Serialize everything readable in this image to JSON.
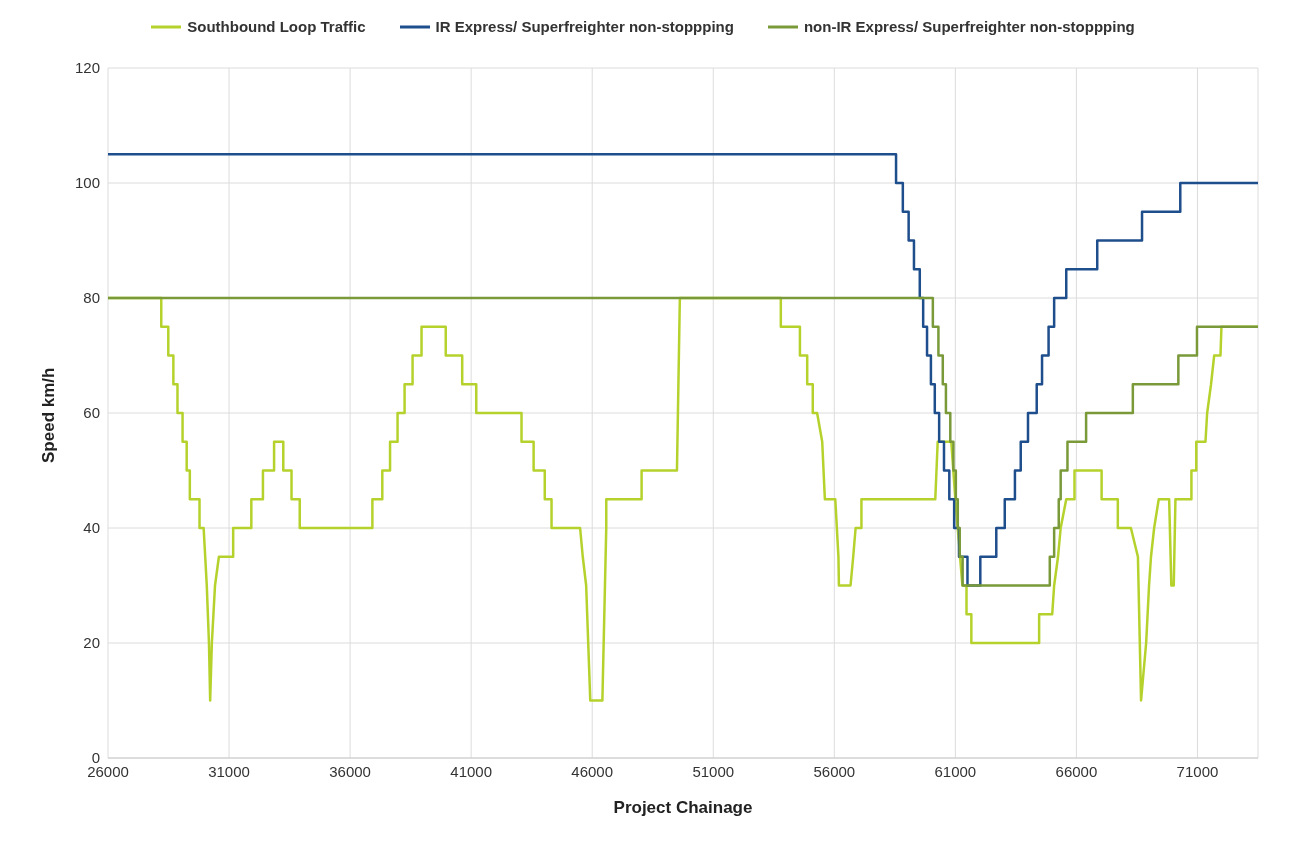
{
  "chart_data": {
    "type": "line",
    "xlabel": "Project Chainage",
    "ylabel": "Speed km/h",
    "xlim": [
      26000,
      73500
    ],
    "xticks": [
      26000,
      31000,
      36000,
      41000,
      46000,
      51000,
      56000,
      61000,
      66000,
      71000
    ],
    "ylim": [
      0,
      120
    ],
    "yticks": [
      0,
      20,
      40,
      60,
      80,
      100,
      120
    ],
    "grid": true,
    "legend": "top",
    "marker": "none",
    "line_style": "solid",
    "series": [
      {
        "name": "Southbound Loop Traffic",
        "color": "#b5d22c",
        "x": [
          26000,
          28200,
          28200,
          28490,
          28490,
          28700,
          28700,
          28870,
          28870,
          29080,
          29080,
          29250,
          29250,
          29380,
          29380,
          29780,
          29780,
          29950,
          30080,
          30170,
          30220,
          30290,
          30420,
          30580,
          31170,
          31170,
          31920,
          31920,
          32400,
          32400,
          32860,
          32860,
          33240,
          33240,
          33580,
          33580,
          33920,
          33920,
          36920,
          36920,
          37330,
          37330,
          37650,
          37650,
          37960,
          37960,
          38250,
          38250,
          38580,
          38580,
          38950,
          38950,
          39950,
          39950,
          40630,
          40630,
          41210,
          41210,
          43080,
          43080,
          43580,
          43580,
          44040,
          44040,
          44320,
          44320,
          45500,
          45610,
          45750,
          45920,
          46420,
          46580,
          46580,
          48040,
          48040,
          49500,
          49620,
          53790,
          53790,
          54580,
          54580,
          54880,
          54880,
          55110,
          55110,
          55290,
          55500,
          55610,
          56040,
          56170,
          56190,
          56670,
          56780,
          56880,
          57120,
          57120,
          60170,
          60270,
          60830,
          61000,
          61290,
          61460,
          61460,
          61660,
          61660,
          64460,
          64460,
          65000,
          65080,
          65240,
          65350,
          65580,
          65920,
          65920,
          67040,
          67040,
          67710,
          67710,
          68250,
          68540,
          68670,
          68880,
          69000,
          69080,
          69210,
          69400,
          69830,
          69920,
          70020,
          70090,
          70750,
          70750,
          70950,
          70950,
          71330,
          71400,
          71560,
          71690,
          71950,
          71990,
          73500
        ],
        "values": [
          80,
          80,
          75,
          75,
          70,
          70,
          65,
          65,
          60,
          60,
          55,
          55,
          50,
          50,
          45,
          45,
          40,
          40,
          30,
          20,
          10,
          20,
          30,
          35,
          35,
          40,
          40,
          45,
          45,
          50,
          50,
          55,
          55,
          50,
          50,
          45,
          45,
          40,
          40,
          45,
          45,
          50,
          50,
          55,
          55,
          60,
          60,
          65,
          65,
          70,
          70,
          75,
          75,
          70,
          70,
          65,
          65,
          60,
          60,
          55,
          55,
          50,
          50,
          45,
          45,
          40,
          40,
          35,
          30,
          10,
          10,
          40,
          45,
          45,
          50,
          50,
          80,
          80,
          75,
          75,
          70,
          70,
          65,
          65,
          60,
          60,
          55,
          45,
          45,
          35,
          30,
          30,
          35,
          40,
          40,
          45,
          45,
          55,
          55,
          45,
          30,
          30,
          25,
          25,
          20,
          20,
          25,
          25,
          30,
          35,
          40,
          45,
          45,
          50,
          50,
          45,
          45,
          40,
          40,
          35,
          10,
          20,
          30,
          35,
          40,
          45,
          45,
          30,
          30,
          45,
          45,
          50,
          50,
          55,
          55,
          60,
          65,
          70,
          70,
          75,
          75
        ]
      },
      {
        "name": "IR Express/ Superfreighter non-stoppping",
        "color": "#1f4e8c",
        "x": [
          26000,
          58550,
          58550,
          58830,
          58830,
          59070,
          59070,
          59290,
          59290,
          59530,
          59530,
          59670,
          59670,
          59830,
          59830,
          59990,
          59990,
          60150,
          60150,
          60330,
          60330,
          60530,
          60530,
          60750,
          60750,
          60950,
          60950,
          61150,
          61150,
          61500,
          61500,
          62030,
          62030,
          62690,
          62690,
          63040,
          63040,
          63460,
          63460,
          63700,
          63700,
          64000,
          64000,
          64360,
          64360,
          64580,
          64580,
          64850,
          64850,
          65080,
          65080,
          65580,
          65580,
          66860,
          66860,
          68710,
          68710,
          70290,
          70290,
          73500
        ],
        "values": [
          105,
          105,
          100,
          100,
          95,
          95,
          90,
          90,
          85,
          85,
          80,
          80,
          75,
          75,
          70,
          70,
          65,
          65,
          60,
          60,
          55,
          55,
          50,
          50,
          45,
          45,
          40,
          40,
          35,
          35,
          30,
          30,
          35,
          35,
          40,
          40,
          45,
          45,
          50,
          50,
          55,
          55,
          60,
          60,
          65,
          65,
          70,
          70,
          75,
          75,
          80,
          80,
          85,
          85,
          90,
          90,
          95,
          95,
          100,
          100
        ]
      },
      {
        "name": "non-IR Express/ Superfreighter non-stoppping",
        "color": "#7a9a3a",
        "x": [
          26000,
          60070,
          60070,
          60300,
          60300,
          60480,
          60480,
          60610,
          60610,
          60790,
          60790,
          60920,
          60920,
          61020,
          61020,
          61100,
          61100,
          61180,
          61180,
          61300,
          61300,
          64900,
          64900,
          65080,
          65080,
          65270,
          65270,
          65350,
          65350,
          65630,
          65630,
          66400,
          66400,
          68330,
          68330,
          70210,
          70210,
          70980,
          70980,
          73500
        ],
        "values": [
          80,
          80,
          75,
          75,
          70,
          70,
          65,
          65,
          60,
          60,
          55,
          55,
          50,
          50,
          45,
          45,
          40,
          40,
          35,
          35,
          30,
          30,
          35,
          35,
          40,
          40,
          45,
          45,
          50,
          50,
          55,
          55,
          60,
          60,
          65,
          65,
          70,
          70,
          75,
          75
        ]
      }
    ]
  }
}
